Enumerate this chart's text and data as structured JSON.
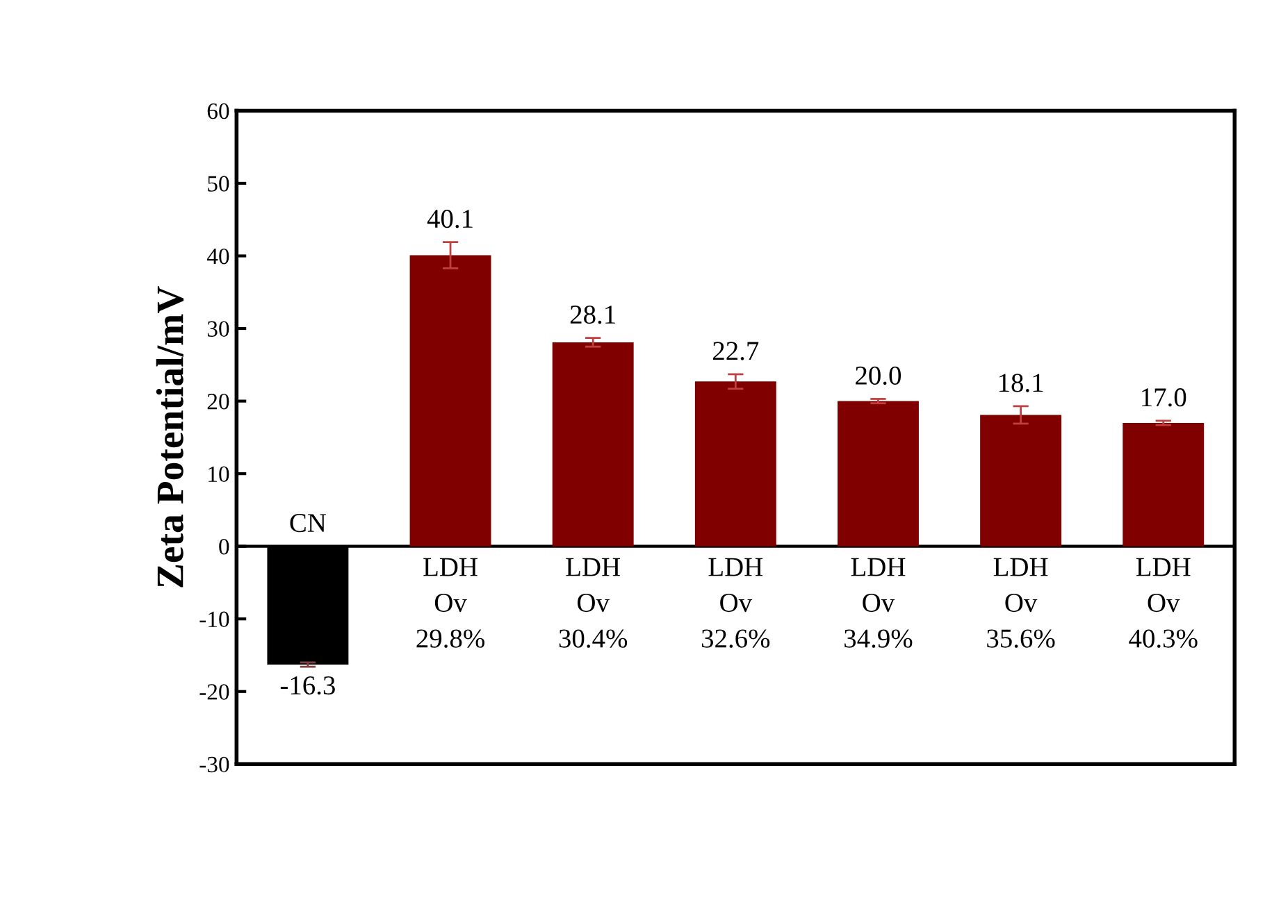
{
  "chart_data": {
    "type": "bar",
    "ylabel": "Zeta Potential/mV",
    "categories": [
      "CN",
      "LDH\nOv\n29.8%",
      "LDH\nOv\n30.4%",
      "LDH\nOv\n32.6%",
      "LDH\nOv\n34.9%",
      "LDH\nOv\n35.6%",
      "LDH\nOv\n40.3%"
    ],
    "values": [
      -16.3,
      40.1,
      28.1,
      22.7,
      20.0,
      18.1,
      17.0
    ],
    "colors": [
      "#000000",
      "#800000",
      "#800000",
      "#800000",
      "#800000",
      "#800000",
      "#800000"
    ],
    "errors": [
      0.3,
      1.8,
      0.6,
      1.0,
      0.3,
      1.2,
      0.3
    ],
    "ylim": [
      -30,
      60
    ],
    "yticks": [
      -30,
      -20,
      -10,
      0,
      10,
      20,
      30,
      40,
      50,
      60
    ],
    "value_labels": [
      "-16.3",
      "40.1",
      "28.1",
      "22.7",
      "20.0",
      "18.1",
      "17.0"
    ],
    "grid": false,
    "legend": false
  }
}
